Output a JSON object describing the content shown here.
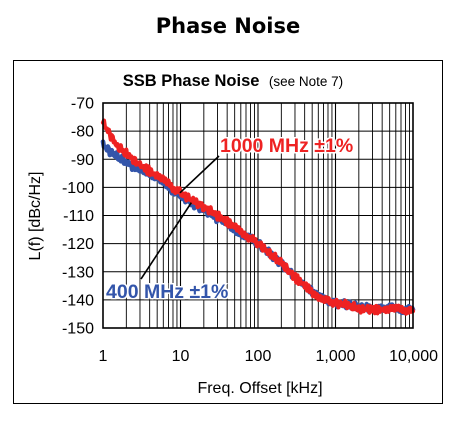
{
  "page": {
    "heading": "Phase Noise"
  },
  "chart_data": {
    "type": "line",
    "title": "SSB Phase Noise",
    "title_note": "(see Note 7)",
    "xlabel": "Freq. Offset [kHz]",
    "ylabel": "L(f) [dBc/Hz]",
    "x_scale": "log",
    "xlim": [
      1,
      10000
    ],
    "ylim": [
      -150,
      -70
    ],
    "x_ticks": [
      {
        "value": 1,
        "label": "1"
      },
      {
        "value": 10,
        "label": "10"
      },
      {
        "value": 100,
        "label": "100"
      },
      {
        "value": 1000,
        "label": "1,000"
      },
      {
        "value": 10000,
        "label": "10,000"
      }
    ],
    "y_ticks": [
      {
        "value": -70,
        "label": "-70"
      },
      {
        "value": -80,
        "label": "-80"
      },
      {
        "value": -90,
        "label": "-90"
      },
      {
        "value": -100,
        "label": "-100"
      },
      {
        "value": -110,
        "label": "-110"
      },
      {
        "value": -120,
        "label": "-120"
      },
      {
        "value": -130,
        "label": "-130"
      },
      {
        "value": -140,
        "label": "-140"
      },
      {
        "value": -150,
        "label": "-150"
      }
    ],
    "grid": true,
    "legend": "none",
    "series": [
      {
        "name": "1000 MHz ±1%",
        "color": "#ee2222",
        "x": [
          1,
          1.5,
          2,
          3,
          5,
          7,
          10,
          15,
          20,
          30,
          50,
          70,
          100,
          150,
          200,
          300,
          500,
          700,
          1000,
          1500,
          2000,
          3000,
          5000,
          7000,
          10000
        ],
        "y": [
          -77,
          -85,
          -88,
          -92,
          -96,
          -99,
          -102,
          -105,
          -107,
          -110,
          -114,
          -117,
          -120,
          -124,
          -127,
          -132,
          -137,
          -140,
          -141,
          -142,
          -143,
          -143.5,
          -143.5,
          -143.5,
          -144
        ]
      },
      {
        "name": "400 MHz ±1%",
        "color": "#3355aa",
        "x": [
          1,
          1.5,
          2,
          3,
          5,
          7,
          10,
          15,
          20,
          30,
          50,
          70,
          100,
          150,
          200,
          300,
          500,
          700,
          1000,
          1500,
          2000,
          3000,
          5000,
          7000,
          10000
        ],
        "y": [
          -85,
          -89,
          -91,
          -94,
          -97,
          -100,
          -103,
          -106,
          -108,
          -111,
          -115,
          -117,
          -120,
          -124,
          -127,
          -132,
          -137,
          -140,
          -141,
          -142,
          -142.5,
          -143,
          -143,
          -143.5,
          -143.5
        ]
      }
    ],
    "annotations": [
      {
        "text": "1000 MHz ±1%",
        "color": "#ee2222",
        "points_to": {
          "x": 9,
          "y": -103
        }
      },
      {
        "text": "400 MHz ±1%",
        "color": "#3355aa",
        "points_to": {
          "x": 13,
          "y": -104
        }
      }
    ]
  }
}
